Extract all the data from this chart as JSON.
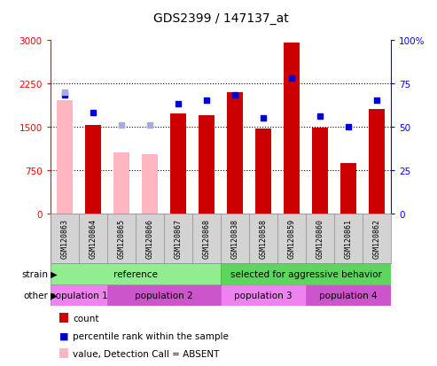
{
  "title": "GDS2399 / 147137_at",
  "samples": [
    "GSM120863",
    "GSM120864",
    "GSM120865",
    "GSM120866",
    "GSM120867",
    "GSM120868",
    "GSM120838",
    "GSM120858",
    "GSM120859",
    "GSM120860",
    "GSM120861",
    "GSM120862"
  ],
  "count_values": [
    null,
    1530,
    null,
    null,
    1720,
    1690,
    2100,
    1460,
    2950,
    1490,
    870,
    1810
  ],
  "absent_count_values": [
    1950,
    null,
    1050,
    1020,
    null,
    null,
    null,
    null,
    null,
    null,
    null,
    null
  ],
  "percentile_values": [
    68,
    58,
    null,
    null,
    63,
    65,
    68,
    55,
    78,
    56,
    50,
    65
  ],
  "absent_percentile_values": [
    70,
    null,
    51,
    51,
    null,
    null,
    null,
    null,
    null,
    null,
    null,
    null
  ],
  "ylim_left": [
    0,
    3000
  ],
  "ylim_right": [
    0,
    100
  ],
  "yticks_left": [
    0,
    750,
    1500,
    2250,
    3000
  ],
  "yticks_right": [
    0,
    25,
    50,
    75,
    100
  ],
  "strain_groups": [
    {
      "label": "reference",
      "start": 0,
      "end": 6,
      "color": "#90ee90"
    },
    {
      "label": "selected for aggressive behavior",
      "start": 6,
      "end": 12,
      "color": "#5cd65c"
    }
  ],
  "other_groups": [
    {
      "label": "population 1",
      "start": 0,
      "end": 2
    },
    {
      "label": "population 2",
      "start": 2,
      "end": 6
    },
    {
      "label": "population 3",
      "start": 6,
      "end": 9
    },
    {
      "label": "population 4",
      "start": 9,
      "end": 12
    }
  ],
  "bar_color_present": "#cc0000",
  "bar_color_absent": "#ffb6c1",
  "dot_color_present": "#0000cc",
  "dot_color_absent": "#aaaadd",
  "bar_width": 0.55,
  "bg_color": "#d3d3d3",
  "plot_bg_color": "#ffffff",
  "pop_colors": [
    "#ee82ee",
    "#da70d6",
    "#ee82ee",
    "#da70d6"
  ]
}
